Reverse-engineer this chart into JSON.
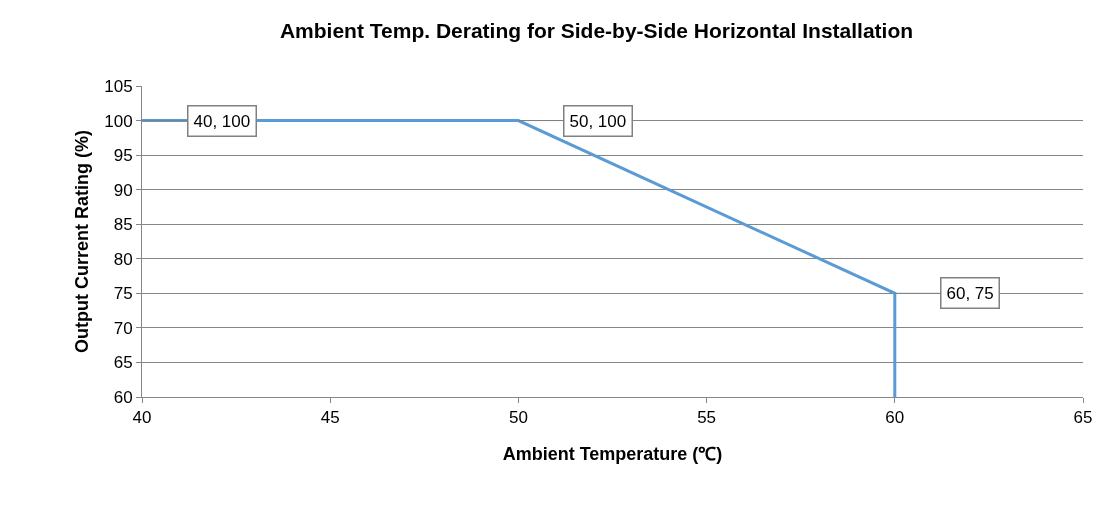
{
  "chart_data": {
    "type": "line",
    "title": "Ambient Temp. Derating for Side-by-Side Horizontal Installation",
    "xlabel": "Ambient Temperature (℃)",
    "ylabel": "Output Current Rating (%)",
    "x": [
      40,
      50,
      60,
      60
    ],
    "series": [
      {
        "color": "#5b9bd5",
        "values": [
          100,
          100,
          75,
          60
        ]
      }
    ],
    "xlim": [
      40,
      65
    ],
    "xticks": [
      40,
      45,
      50,
      55,
      60,
      65
    ],
    "ylim": [
      60,
      105
    ],
    "yticks": [
      60,
      65,
      70,
      75,
      80,
      85,
      90,
      95,
      100,
      105
    ],
    "grid": "y",
    "legend": false,
    "marker": "none",
    "line_style": "solid",
    "annotations": [
      {
        "text": "40, 100",
        "x": 40,
        "y": 100
      },
      {
        "text": "50, 100",
        "x": 50,
        "y": 100
      },
      {
        "text": "60, 75",
        "x": 60,
        "y": 75
      }
    ]
  }
}
